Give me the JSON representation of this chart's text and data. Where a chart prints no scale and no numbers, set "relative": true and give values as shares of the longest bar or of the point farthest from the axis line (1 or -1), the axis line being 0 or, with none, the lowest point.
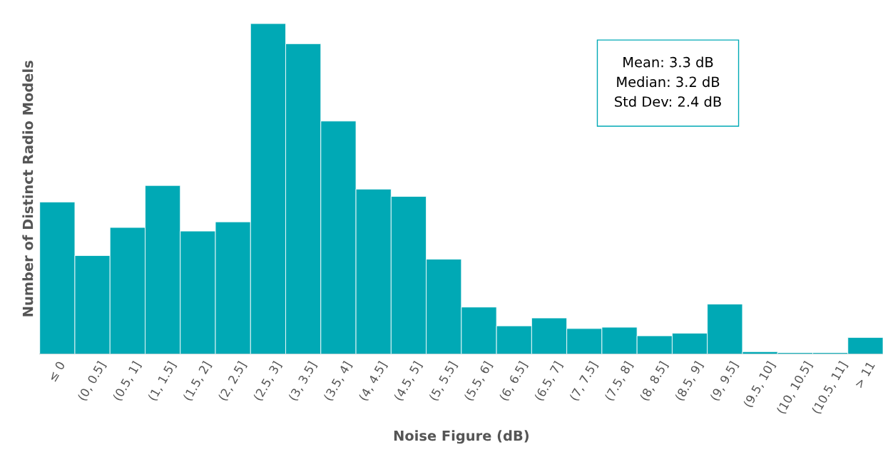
{
  "chart_data": {
    "type": "bar",
    "relative": true,
    "xlabel": "Noise Figure (dB)",
    "ylabel": "Number of Distinct Radio Models",
    "categories": [
      "≤ 0",
      "(0, 0.5]",
      "(0.5, 1]",
      "(1, 1.5]",
      "(1.5, 2]",
      "(2, 2.5]",
      "(2.5, 3]",
      "(3, 3.5]",
      "(3.5, 4]",
      "(4, 4.5]",
      "(4.5, 5]",
      "(5, 5.5]",
      "(5.5, 6]",
      "(6, 6.5]",
      "(6.5, 7]",
      "(7, 7.5]",
      "(7.5, 8]",
      "(8, 8.5]",
      "(8.5, 9]",
      "(9, 9.5]",
      "(9.5, 10]",
      "(10, 10.5]",
      "(10.5, 11]",
      "> 11"
    ],
    "values": [
      0.46,
      0.298,
      0.383,
      0.51,
      0.372,
      0.4,
      1,
      0.939,
      0.705,
      0.499,
      0.477,
      0.287,
      0.142,
      0.085,
      0.109,
      0.077,
      0.081,
      0.055,
      0.063,
      0.151,
      0.007,
      0.004,
      0.004,
      0.05
    ],
    "color": "#00a9b5",
    "annotations": [
      "Mean: 3.3 dB",
      "Median: 3.2 dB",
      "Std Dev: 2.4 dB"
    ]
  }
}
